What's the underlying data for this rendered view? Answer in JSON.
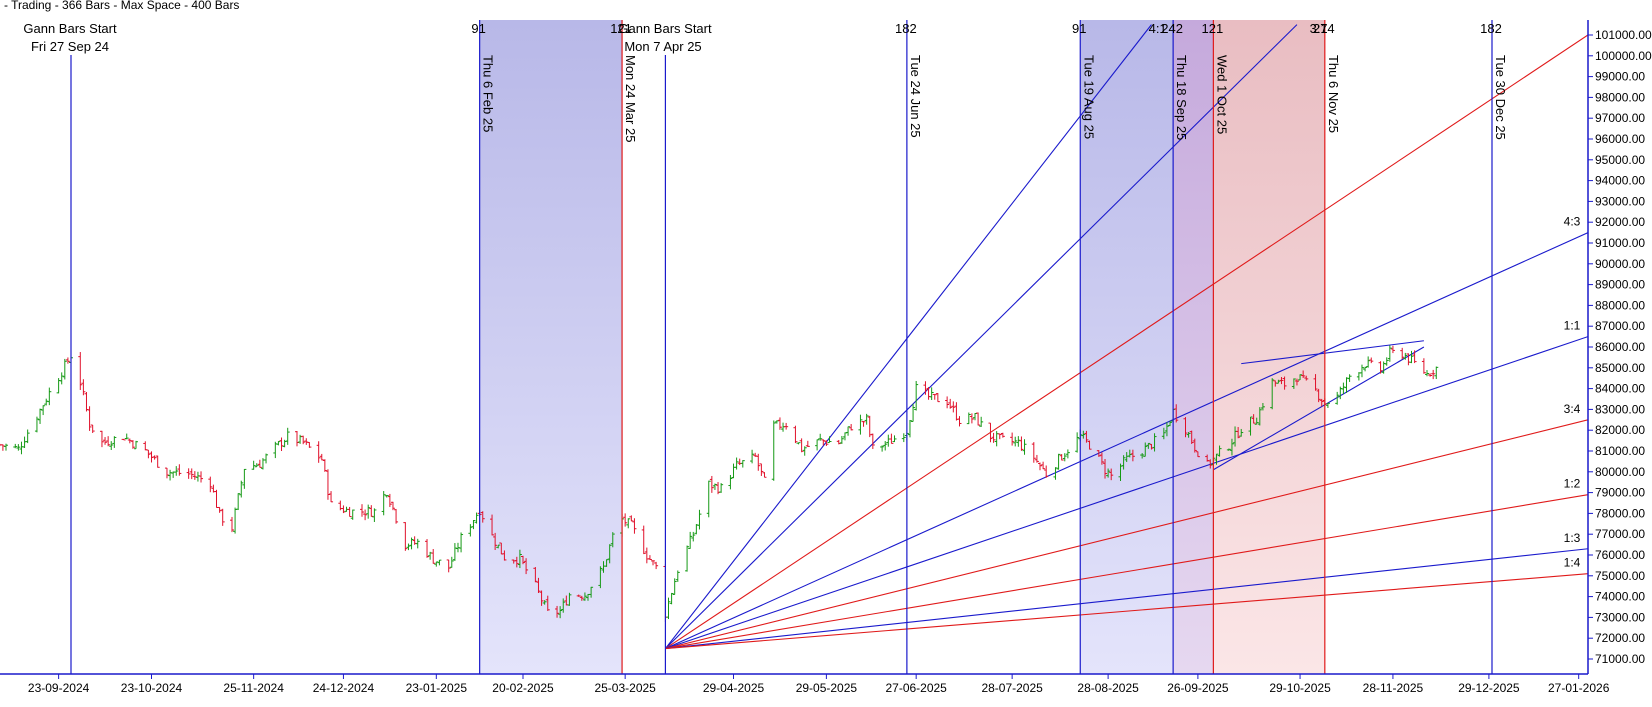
{
  "header": {
    "title": "- Trading - 366 Bars - Max Space - 400 Bars"
  },
  "gann_starts": [
    {
      "label": "Gann Bars Start",
      "date": "Fri 27 Sep 24"
    },
    {
      "label": "Gann Bars Start",
      "date": "Mon 7 Apr 25"
    }
  ],
  "chart_data": {
    "type": "ohlc",
    "title": "",
    "x_tick_labels": [
      "23-09-2024",
      "23-10-2024",
      "25-11-2024",
      "24-12-2024",
      "23-01-2025",
      "20-02-2025",
      "25-03-2025",
      "29-04-2025",
      "29-05-2025",
      "27-06-2025",
      "28-07-2025",
      "28-08-2025",
      "26-09-2025",
      "29-10-2025",
      "28-11-2025",
      "29-12-2025",
      "27-01-2026"
    ],
    "y_tick_labels": [
      "71000.00",
      "72000.00",
      "73000.00",
      "74000.00",
      "75000.00",
      "76000.00",
      "77000.00",
      "78000.00",
      "79000.00",
      "80000.00",
      "81000.00",
      "82000.00",
      "83000.00",
      "84000.00",
      "85000.00",
      "86000.00",
      "87000.00",
      "88000.00",
      "89000.00",
      "90000.00",
      "91000.00",
      "92000.00",
      "93000.00",
      "94000.00",
      "95000.00",
      "96000.00",
      "97000.00",
      "98000.00",
      "99000.00",
      "100000.00",
      "101000.00"
    ],
    "ylim": [
      70500,
      101500
    ],
    "xlim": [
      "2024-09-04",
      "2026-02-01"
    ],
    "grid": false,
    "vertical_lines": [
      {
        "date": "2024-09-27",
        "color": "#1a1acc",
        "top_label": "",
        "date_label": ""
      },
      {
        "date": "2025-02-06",
        "color": "#1a1acc",
        "top_label": "91",
        "date_label": "Thu 6 Feb 25"
      },
      {
        "date": "2025-03-24",
        "color": "#e01a1a",
        "top_label": "121",
        "date_label": "Mon 24 Mar 25"
      },
      {
        "date": "2025-04-07",
        "color": "#1a1acc",
        "top_label": "",
        "date_label": ""
      },
      {
        "date": "2025-06-24",
        "color": "#1a1acc",
        "top_label": "182",
        "date_label": "Tue 24 Jun 25"
      },
      {
        "date": "2025-08-19",
        "color": "#1a1acc",
        "top_label": "91",
        "date_label": "Tue 19 Aug 25"
      },
      {
        "date": "2025-09-18",
        "color": "#1a1acc",
        "top_label": "242",
        "date_label": "Thu 18 Sep 25"
      },
      {
        "date": "2025-10-01",
        "color": "#e01a1a",
        "top_label": "121",
        "date_label": "Wed 1 Oct 25"
      },
      {
        "date": "2025-11-06",
        "color": "#e01a1a",
        "top_label": "274",
        "date_label": "Thu 6 Nov 25"
      },
      {
        "date": "2025-12-30",
        "color": "#1a1acc",
        "top_label": "182",
        "date_label": "Tue 30 Dec 25"
      }
    ],
    "extra_top_labels": [
      {
        "date": "2025-09-13",
        "text": "4:1"
      },
      {
        "date": "2025-11-04",
        "text": "3:1"
      }
    ],
    "shaded_zones": [
      {
        "start": "2025-02-06",
        "end": "2025-03-24",
        "color": "blue"
      },
      {
        "start": "2025-08-19",
        "end": "2025-09-18",
        "color": "blue"
      },
      {
        "start": "2025-09-18",
        "end": "2025-10-01",
        "color": "purple"
      },
      {
        "start": "2025-10-01",
        "end": "2025-11-06",
        "color": "red"
      }
    ],
    "gann_fan": {
      "origin": {
        "date": "2025-04-07",
        "price": 71500
      },
      "rays": [
        {
          "end_date": "2025-09-11",
          "end_price": 101500,
          "color": "#1a1acc",
          "label": ""
        },
        {
          "end_date": "2025-10-28",
          "end_price": 101500,
          "color": "#1a1acc",
          "label": ""
        },
        {
          "end_date": "2026-01-30",
          "end_price": 101000,
          "color": "#e01a1a",
          "label": ""
        },
        {
          "end_date": "2026-01-30",
          "end_price": 91500,
          "color": "#1a1acc",
          "label": "4:3"
        },
        {
          "end_date": "2026-01-30",
          "end_price": 86500,
          "color": "#1a1acc",
          "label": "1:1"
        },
        {
          "end_date": "2026-01-30",
          "end_price": 82500,
          "color": "#e01a1a",
          "label": "3:4"
        },
        {
          "end_date": "2026-01-30",
          "end_price": 78900,
          "color": "#e01a1a",
          "label": "1:2"
        },
        {
          "end_date": "2026-01-30",
          "end_price": 76300,
          "color": "#1a1acc",
          "label": "1:3"
        },
        {
          "end_date": "2026-01-30",
          "end_price": 75100,
          "color": "#e01a1a",
          "label": "1:4"
        }
      ]
    },
    "trend_lines": [
      {
        "start_date": "2025-10-10",
        "start_price": 85200,
        "end_date": "2025-12-08",
        "end_price": 86300,
        "color": "#1a1acc"
      },
      {
        "start_date": "2025-10-01",
        "start_price": 80100,
        "end_date": "2025-12-08",
        "end_price": 86000,
        "color": "#1a1acc"
      }
    ],
    "price_path": [
      [
        "2024-09-04",
        81300
      ],
      [
        "2024-09-10",
        81100
      ],
      [
        "2024-09-16",
        82700
      ],
      [
        "2024-09-20",
        83800
      ],
      [
        "2024-09-27",
        85600
      ],
      [
        "2024-09-30",
        84300
      ],
      [
        "2024-10-03",
        82300
      ],
      [
        "2024-10-07",
        81400
      ],
      [
        "2024-10-14",
        81700
      ],
      [
        "2024-10-21",
        81000
      ],
      [
        "2024-10-28",
        80000
      ],
      [
        "2024-11-04",
        79900
      ],
      [
        "2024-11-11",
        79500
      ],
      [
        "2024-11-14",
        77900
      ],
      [
        "2024-11-18",
        77300
      ],
      [
        "2024-11-22",
        80200
      ],
      [
        "2024-11-27",
        80400
      ],
      [
        "2024-12-03",
        81300
      ],
      [
        "2024-12-06",
        81700
      ],
      [
        "2024-12-11",
        81400
      ],
      [
        "2024-12-17",
        80600
      ],
      [
        "2024-12-20",
        78400
      ],
      [
        "2024-12-26",
        78100
      ],
      [
        "2025-01-03",
        78100
      ],
      [
        "2025-01-07",
        79100
      ],
      [
        "2025-01-13",
        76500
      ],
      [
        "2025-01-17",
        76600
      ],
      [
        "2025-01-22",
        75800
      ],
      [
        "2025-01-27",
        75400
      ],
      [
        "2025-01-31",
        76800
      ],
      [
        "2025-02-03",
        77500
      ],
      [
        "2025-02-06",
        78200
      ],
      [
        "2025-02-10",
        76900
      ],
      [
        "2025-02-14",
        75900
      ],
      [
        "2025-02-19",
        75800
      ],
      [
        "2025-02-24",
        74500
      ],
      [
        "2025-02-28",
        73200
      ],
      [
        "2025-03-04",
        73300
      ],
      [
        "2025-03-07",
        74100
      ],
      [
        "2025-03-12",
        74100
      ],
      [
        "2025-03-18",
        75400
      ],
      [
        "2025-03-21",
        76900
      ],
      [
        "2025-03-24",
        77700
      ],
      [
        "2025-03-27",
        77400
      ],
      [
        "2025-04-01",
        76000
      ],
      [
        "2025-04-04",
        75400
      ],
      [
        "2025-04-07",
        73200
      ],
      [
        "2025-04-11",
        75300
      ],
      [
        "2025-04-16",
        77000
      ],
      [
        "2025-04-21",
        79400
      ],
      [
        "2025-04-25",
        79200
      ],
      [
        "2025-04-30",
        80300
      ],
      [
        "2025-05-06",
        80700
      ],
      [
        "2025-05-09",
        79500
      ],
      [
        "2025-05-12",
        82200
      ],
      [
        "2025-05-16",
        82300
      ],
      [
        "2025-05-21",
        81100
      ],
      [
        "2025-05-27",
        81500
      ],
      [
        "2025-06-02",
        81400
      ],
      [
        "2025-06-06",
        82200
      ],
      [
        "2025-06-11",
        82500
      ],
      [
        "2025-06-13",
        81100
      ],
      [
        "2025-06-18",
        81400
      ],
      [
        "2025-06-24",
        82000
      ],
      [
        "2025-06-27",
        84000
      ],
      [
        "2025-07-01",
        83600
      ],
      [
        "2025-07-07",
        83400
      ],
      [
        "2025-07-11",
        82500
      ],
      [
        "2025-07-16",
        82600
      ],
      [
        "2025-07-21",
        81700
      ],
      [
        "2025-07-25",
        81500
      ],
      [
        "2025-07-30",
        81400
      ],
      [
        "2025-08-04",
        80700
      ],
      [
        "2025-08-08",
        79900
      ],
      [
        "2025-08-12",
        80600
      ],
      [
        "2025-08-19",
        81700
      ],
      [
        "2025-08-22",
        81300
      ],
      [
        "2025-08-27",
        80100
      ],
      [
        "2025-08-29",
        79800
      ],
      [
        "2025-09-03",
        80600
      ],
      [
        "2025-09-09",
        81100
      ],
      [
        "2025-09-15",
        81800
      ],
      [
        "2025-09-18",
        82900
      ],
      [
        "2025-09-22",
        82100
      ],
      [
        "2025-09-25",
        81200
      ],
      [
        "2025-09-29",
        80300
      ],
      [
        "2025-10-01",
        80600
      ],
      [
        "2025-10-06",
        81300
      ],
      [
        "2025-10-10",
        82100
      ],
      [
        "2025-10-15",
        82600
      ],
      [
        "2025-10-20",
        84300
      ],
      [
        "2025-10-24",
        84200
      ],
      [
        "2025-10-28",
        84600
      ],
      [
        "2025-11-03",
        83900
      ],
      [
        "2025-11-06",
        83300
      ],
      [
        "2025-11-10",
        83600
      ],
      [
        "2025-11-14",
        84600
      ],
      [
        "2025-11-19",
        85200
      ],
      [
        "2025-11-24",
        84900
      ],
      [
        "2025-11-27",
        85700
      ],
      [
        "2025-12-01",
        85700
      ],
      [
        "2025-12-05",
        85200
      ],
      [
        "2025-12-09",
        84700
      ],
      [
        "2025-12-12",
        85000
      ]
    ]
  },
  "colors": {
    "blue_line": "#1a1acc",
    "red_line": "#e01a1a",
    "bar_up": "#159915",
    "bar_down": "#e0102a",
    "zone_blue": "#d2d2f6",
    "zone_purple": "#d6c2e6",
    "zone_red": "#f6d8da"
  }
}
